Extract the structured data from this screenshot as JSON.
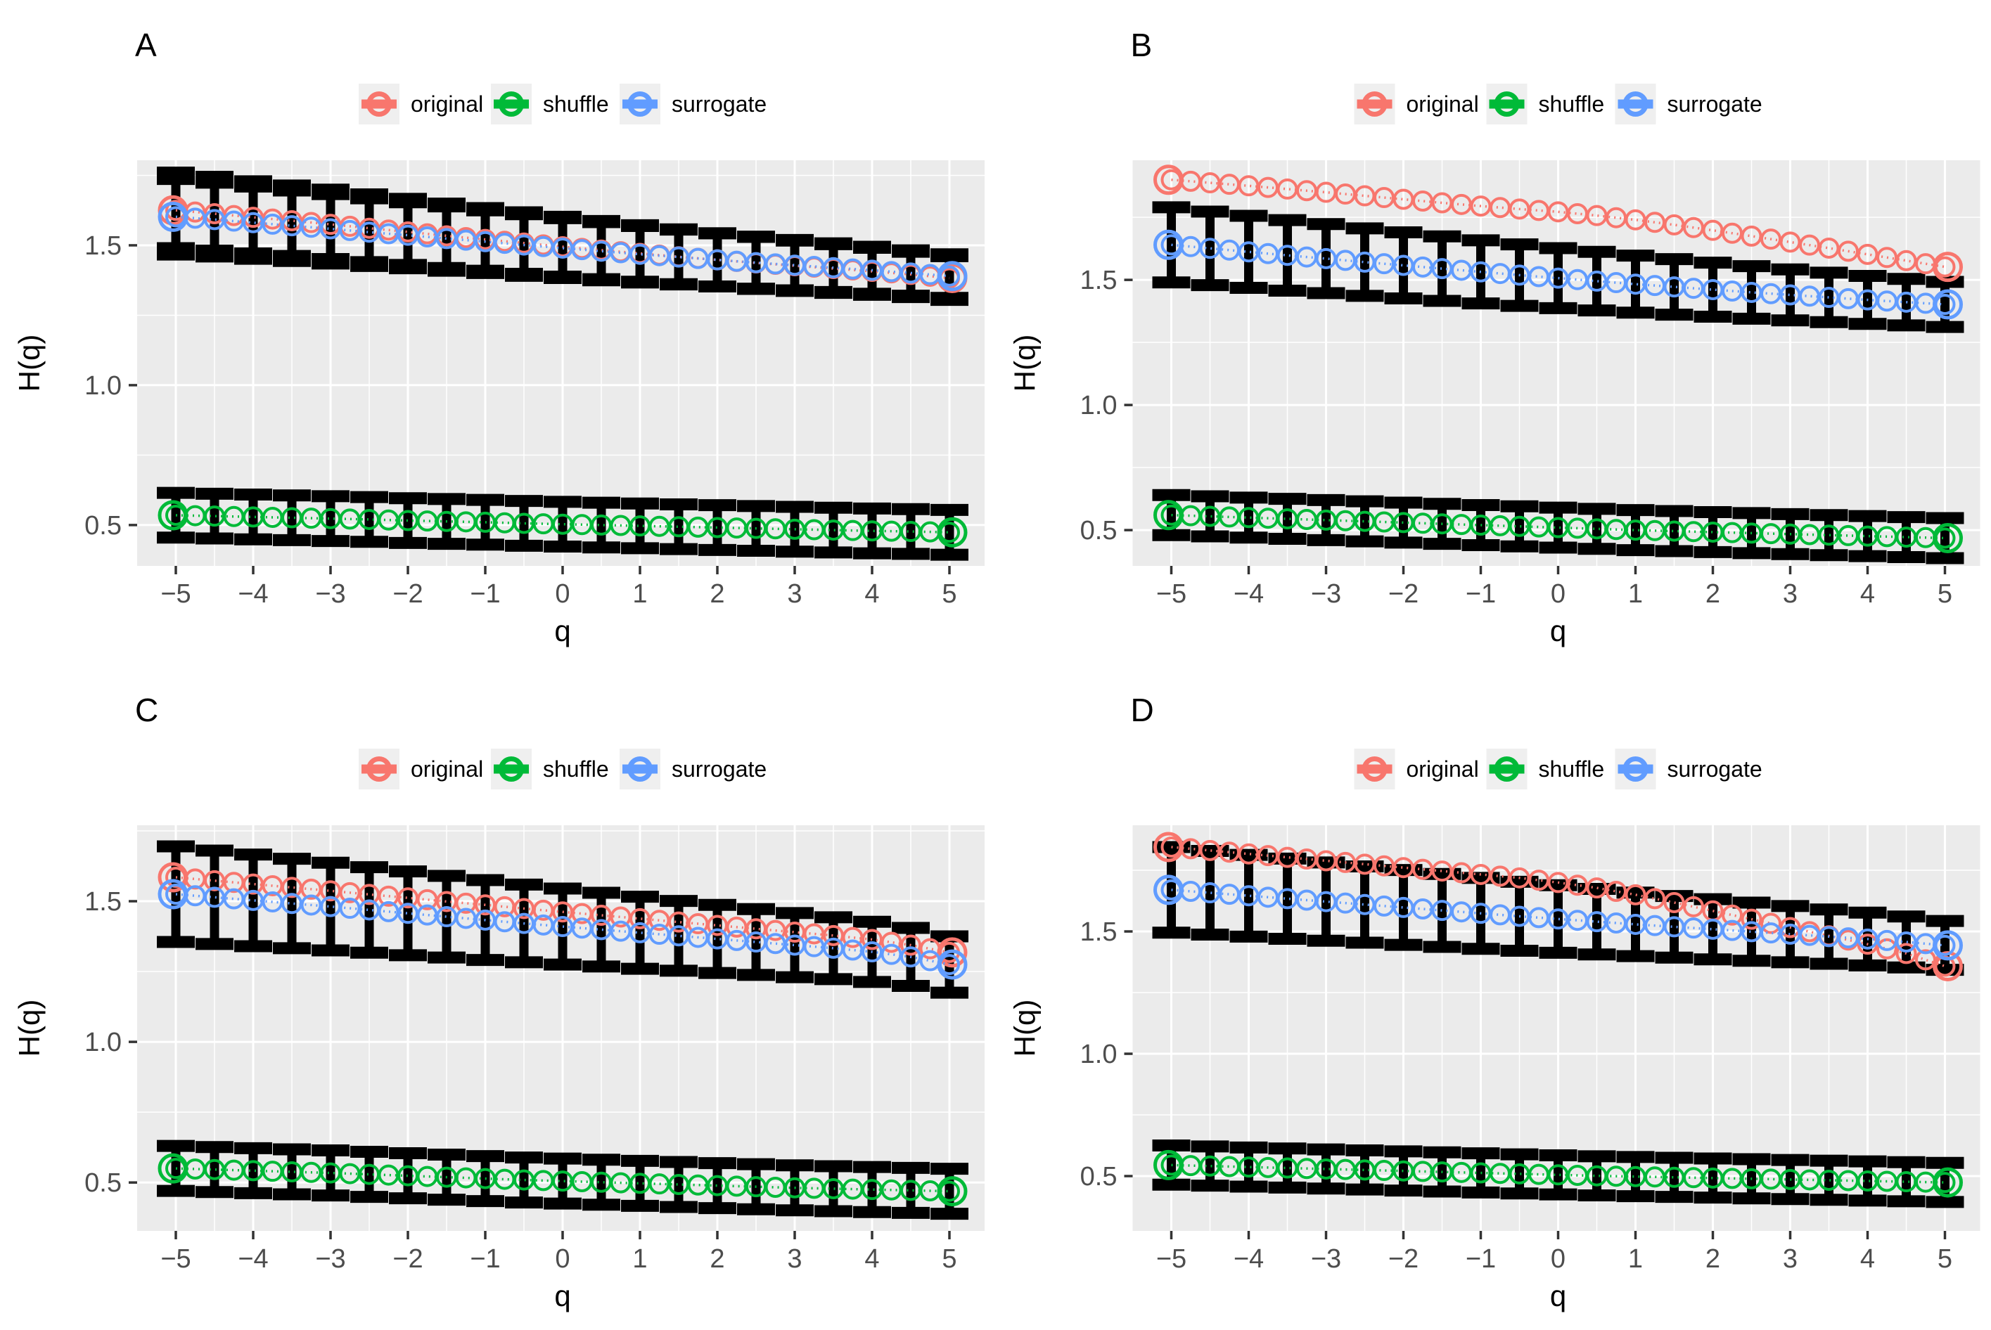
{
  "colors": {
    "original": "#F8766D",
    "shuffle": "#00BA38",
    "surrogate": "#619CFF",
    "panel_bg": "#EBEBEB",
    "grid": "#FFFFFF",
    "errorbar": "#000000",
    "tick_text": "#4D4D4D",
    "tick_mark": "#333333",
    "title_text": "#000000",
    "legend_key_bg": "#EFEFEF"
  },
  "legend": {
    "items": [
      {
        "label": "original",
        "color_key": "original"
      },
      {
        "label": "shuffle",
        "color_key": "shuffle"
      },
      {
        "label": "surrogate",
        "color_key": "surrogate"
      }
    ]
  },
  "axes": {
    "x_label": "q",
    "y_label": "H(q)",
    "x_tick_values": [
      -5,
      -4,
      -3,
      -2,
      -1,
      0,
      1,
      2,
      3,
      4,
      5
    ],
    "x_tick_labels": [
      "−5",
      "−4",
      "−3",
      "−2",
      "−1",
      "0",
      "1",
      "2",
      "3",
      "4",
      "5"
    ],
    "y_tick_values": [
      0.5,
      1.0,
      1.5
    ],
    "y_tick_labels": [
      "0.5",
      "1.0",
      "1.5"
    ]
  },
  "chart_data": [
    {
      "panel": "A",
      "type": "line",
      "xlabel": "q",
      "ylabel": "H(q)",
      "x": [
        -5,
        -4.5,
        -4,
        -3.5,
        -3,
        -2.5,
        -2,
        -1.5,
        -1,
        -0.5,
        0,
        0.5,
        1,
        1.5,
        2,
        2.5,
        3,
        3.5,
        4,
        4.5,
        5
      ],
      "ylim": [
        0.354,
        1.804
      ],
      "series": [
        {
          "name": "original",
          "color_key": "original",
          "values": [
            1.625,
            1.613,
            1.6,
            1.588,
            1.575,
            1.561,
            1.548,
            1.534,
            1.521,
            1.508,
            1.495,
            1.483,
            1.471,
            1.459,
            1.448,
            1.437,
            1.427,
            1.417,
            1.407,
            1.396,
            1.383
          ],
          "err": [
            0.135,
            0.132,
            0.129,
            0.126,
            0.124,
            0.121,
            0.118,
            0.115,
            0.112,
            0.11,
            0.107,
            0.104,
            0.101,
            0.098,
            0.095,
            0.093,
            0.09,
            0.087,
            0.084,
            0.081,
            0.078
          ]
        },
        {
          "name": "surrogate",
          "color_key": "surrogate",
          "values": [
            1.602,
            1.592,
            1.581,
            1.57,
            1.559,
            1.547,
            1.536,
            1.524,
            1.513,
            1.501,
            1.49,
            1.479,
            1.468,
            1.458,
            1.448,
            1.438,
            1.429,
            1.42,
            1.411,
            1.401,
            1.39
          ],
          "err": [
            0.135,
            0.132,
            0.129,
            0.126,
            0.124,
            0.121,
            0.118,
            0.115,
            0.112,
            0.11,
            0.107,
            0.104,
            0.101,
            0.098,
            0.095,
            0.093,
            0.09,
            0.087,
            0.084,
            0.081,
            0.078
          ]
        },
        {
          "name": "shuffle",
          "color_key": "shuffle",
          "values": [
            0.535,
            0.532,
            0.529,
            0.526,
            0.523,
            0.52,
            0.516,
            0.513,
            0.51,
            0.506,
            0.503,
            0.5,
            0.497,
            0.494,
            0.491,
            0.488,
            0.485,
            0.482,
            0.479,
            0.477,
            0.474
          ],
          "err": 0.08
        }
      ]
    },
    {
      "panel": "B",
      "type": "line",
      "xlabel": "q",
      "ylabel": "H(q)",
      "x": [
        -5,
        -4.5,
        -4,
        -3.5,
        -3,
        -2.5,
        -2,
        -1.5,
        -1,
        -0.5,
        0,
        0.5,
        1,
        1.5,
        2,
        2.5,
        3,
        3.5,
        4,
        4.5,
        5
      ],
      "ylim": [
        0.357,
        1.978
      ],
      "series": [
        {
          "name": "original",
          "color_key": "original",
          "values": [
            1.9,
            1.888,
            1.876,
            1.863,
            1.85,
            1.836,
            1.822,
            1.808,
            1.795,
            1.783,
            1.772,
            1.757,
            1.74,
            1.72,
            1.698,
            1.675,
            1.651,
            1.627,
            1.602,
            1.577,
            1.552
          ],
          "err": null
        },
        {
          "name": "surrogate",
          "color_key": "surrogate",
          "values": [
            1.64,
            1.626,
            1.612,
            1.598,
            1.585,
            1.571,
            1.558,
            1.545,
            1.532,
            1.519,
            1.507,
            1.495,
            1.483,
            1.472,
            1.461,
            1.45,
            1.44,
            1.43,
            1.42,
            1.411,
            1.402
          ],
          "err": [
            0.15,
            0.147,
            0.144,
            0.141,
            0.138,
            0.135,
            0.132,
            0.129,
            0.126,
            0.123,
            0.12,
            0.117,
            0.114,
            0.111,
            0.108,
            0.105,
            0.102,
            0.099,
            0.096,
            0.093,
            0.09
          ]
        },
        {
          "name": "shuffle",
          "color_key": "shuffle",
          "values": [
            0.56,
            0.555,
            0.55,
            0.545,
            0.54,
            0.535,
            0.53,
            0.525,
            0.52,
            0.515,
            0.51,
            0.505,
            0.5,
            0.496,
            0.492,
            0.488,
            0.484,
            0.48,
            0.476,
            0.472,
            0.468
          ],
          "err": 0.08
        }
      ]
    },
    {
      "panel": "C",
      "type": "line",
      "xlabel": "q",
      "ylabel": "H(q)",
      "x": [
        -5,
        -4.5,
        -4,
        -3.5,
        -3,
        -2.5,
        -2,
        -1.5,
        -1,
        -0.5,
        0,
        0.5,
        1,
        1.5,
        2,
        2.5,
        3,
        3.5,
        4,
        4.5,
        5
      ],
      "ylim": [
        0.328,
        1.77
      ],
      "series": [
        {
          "name": "original",
          "color_key": "original",
          "values": [
            1.585,
            1.573,
            1.561,
            1.549,
            1.537,
            1.524,
            1.512,
            1.499,
            1.487,
            1.474,
            1.462,
            1.45,
            1.438,
            1.426,
            1.414,
            1.402,
            1.39,
            1.378,
            1.364,
            1.344,
            1.318
          ],
          "err": null
        },
        {
          "name": "surrogate",
          "color_key": "surrogate",
          "values": [
            1.525,
            1.514,
            1.503,
            1.492,
            1.481,
            1.469,
            1.457,
            1.445,
            1.433,
            1.421,
            1.41,
            1.399,
            1.388,
            1.377,
            1.366,
            1.355,
            1.344,
            1.333,
            1.32,
            1.302,
            1.275
          ],
          "err": [
            0.17,
            0.166,
            0.163,
            0.159,
            0.156,
            0.152,
            0.149,
            0.145,
            0.142,
            0.138,
            0.135,
            0.131,
            0.128,
            0.124,
            0.121,
            0.117,
            0.114,
            0.11,
            0.107,
            0.103,
            0.1
          ]
        },
        {
          "name": "shuffle",
          "color_key": "shuffle",
          "values": [
            0.55,
            0.546,
            0.542,
            0.538,
            0.534,
            0.529,
            0.524,
            0.519,
            0.514,
            0.509,
            0.505,
            0.501,
            0.497,
            0.493,
            0.489,
            0.485,
            0.481,
            0.478,
            0.475,
            0.472,
            0.469
          ],
          "err": 0.08
        }
      ]
    },
    {
      "panel": "D",
      "type": "line",
      "xlabel": "q",
      "ylabel": "H(q)",
      "x": [
        -5,
        -4.5,
        -4,
        -3.5,
        -3,
        -2.5,
        -2,
        -1.5,
        -1,
        -0.5,
        0,
        0.5,
        1,
        1.5,
        2,
        2.5,
        3,
        3.5,
        4,
        4.5,
        5
      ],
      "ylim": [
        0.276,
        1.934
      ],
      "series": [
        {
          "name": "original",
          "color_key": "original",
          "values": [
            1.845,
            1.831,
            1.817,
            1.803,
            1.789,
            1.775,
            1.761,
            1.747,
            1.733,
            1.719,
            1.7,
            1.678,
            1.65,
            1.618,
            1.584,
            1.55,
            1.516,
            1.482,
            1.448,
            1.41,
            1.358
          ],
          "err": null
        },
        {
          "name": "surrogate",
          "color_key": "surrogate",
          "values": [
            1.67,
            1.658,
            1.646,
            1.634,
            1.622,
            1.61,
            1.598,
            1.586,
            1.574,
            1.562,
            1.551,
            1.54,
            1.529,
            1.519,
            1.509,
            1.499,
            1.489,
            1.479,
            1.469,
            1.457,
            1.443
          ],
          "err": [
            0.175,
            0.171,
            0.167,
            0.164,
            0.16,
            0.156,
            0.153,
            0.149,
            0.145,
            0.141,
            0.138,
            0.134,
            0.13,
            0.126,
            0.123,
            0.119,
            0.115,
            0.111,
            0.108,
            0.104,
            0.1
          ]
        },
        {
          "name": "shuffle",
          "color_key": "shuffle",
          "values": [
            0.545,
            0.541,
            0.537,
            0.533,
            0.529,
            0.525,
            0.521,
            0.517,
            0.513,
            0.509,
            0.505,
            0.501,
            0.498,
            0.495,
            0.492,
            0.489,
            0.486,
            0.483,
            0.48,
            0.477,
            0.474
          ],
          "err": 0.08
        }
      ]
    }
  ]
}
